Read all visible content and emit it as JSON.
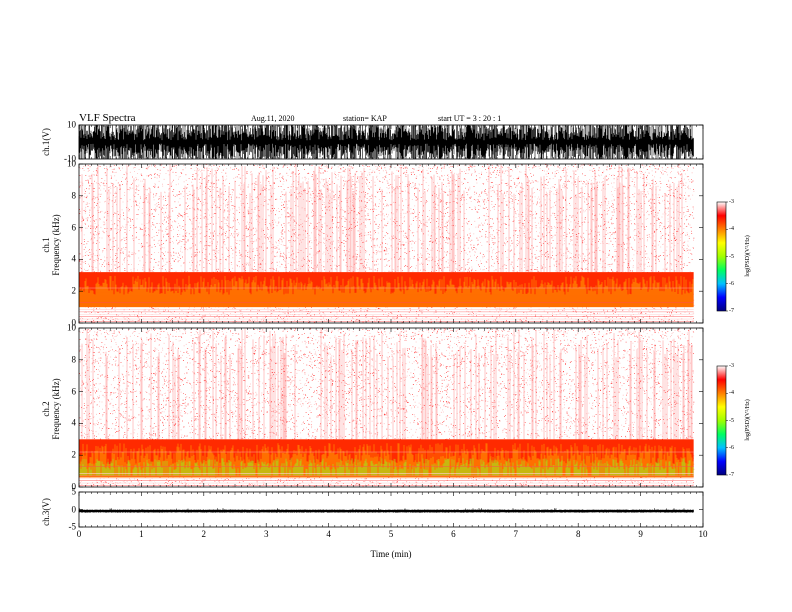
{
  "header": {
    "title": "VLF Spectra",
    "date": "Aug.11, 2020",
    "station": "station= KAP",
    "start": "start  UT  =   3  : 20 : 1"
  },
  "chart_data": [
    {
      "type": "line",
      "name": "ch1-waveform",
      "ylabel": "ch.1(V)",
      "ylim": [
        -10,
        10
      ],
      "yticks": [
        "10",
        "-10"
      ],
      "xlim": [
        0,
        10
      ],
      "data_extent_min": 9.85,
      "signal": "dense noise spanning most of -10 to 10 V"
    },
    {
      "type": "heatmap",
      "name": "ch1-spectrogram",
      "ylabel": "ch.1\nFrequency (kHz)",
      "ylim": [
        0,
        10
      ],
      "yticks": [
        "0",
        "2",
        "4",
        "6",
        "8",
        "10"
      ],
      "xlim": [
        0,
        10
      ],
      "data_extent_min": 9.85,
      "band_khz": [
        1.0,
        3.2
      ]
    },
    {
      "type": "heatmap",
      "name": "ch2-spectrogram",
      "ylabel": "ch.2\nFrequency (kHz)",
      "ylim": [
        0,
        10
      ],
      "yticks": [
        "0",
        "2",
        "4",
        "6",
        "8",
        "10"
      ],
      "xlim": [
        0,
        10
      ],
      "data_extent_min": 9.85,
      "band_khz": [
        0.6,
        3.0
      ]
    },
    {
      "type": "line",
      "name": "ch3-waveform",
      "ylabel": "ch.3(V)",
      "ylim": [
        -5,
        5
      ],
      "yticks": [
        "5",
        "0",
        "-5"
      ],
      "xlim": [
        0,
        10
      ],
      "data_extent_min": 9.85,
      "signal": "narrow band around -0.4 V"
    }
  ],
  "x_axis": {
    "xlabel": "Time  (min)",
    "ticks": [
      "0",
      "1",
      "2",
      "3",
      "4",
      "5",
      "6",
      "7",
      "8",
      "9",
      "10"
    ]
  },
  "colorbar": {
    "label": "log(PSD)(V²/Hz)",
    "range": [
      -7,
      -3
    ],
    "ticks": [
      "-3",
      "-4",
      "-5",
      "-6",
      "-7"
    ],
    "stops": [
      "#000080",
      "#0000ff",
      "#00c0ff",
      "#00ff60",
      "#a0ff00",
      "#ffff00",
      "#ff8000",
      "#ff0000",
      "#ffffff"
    ]
  }
}
